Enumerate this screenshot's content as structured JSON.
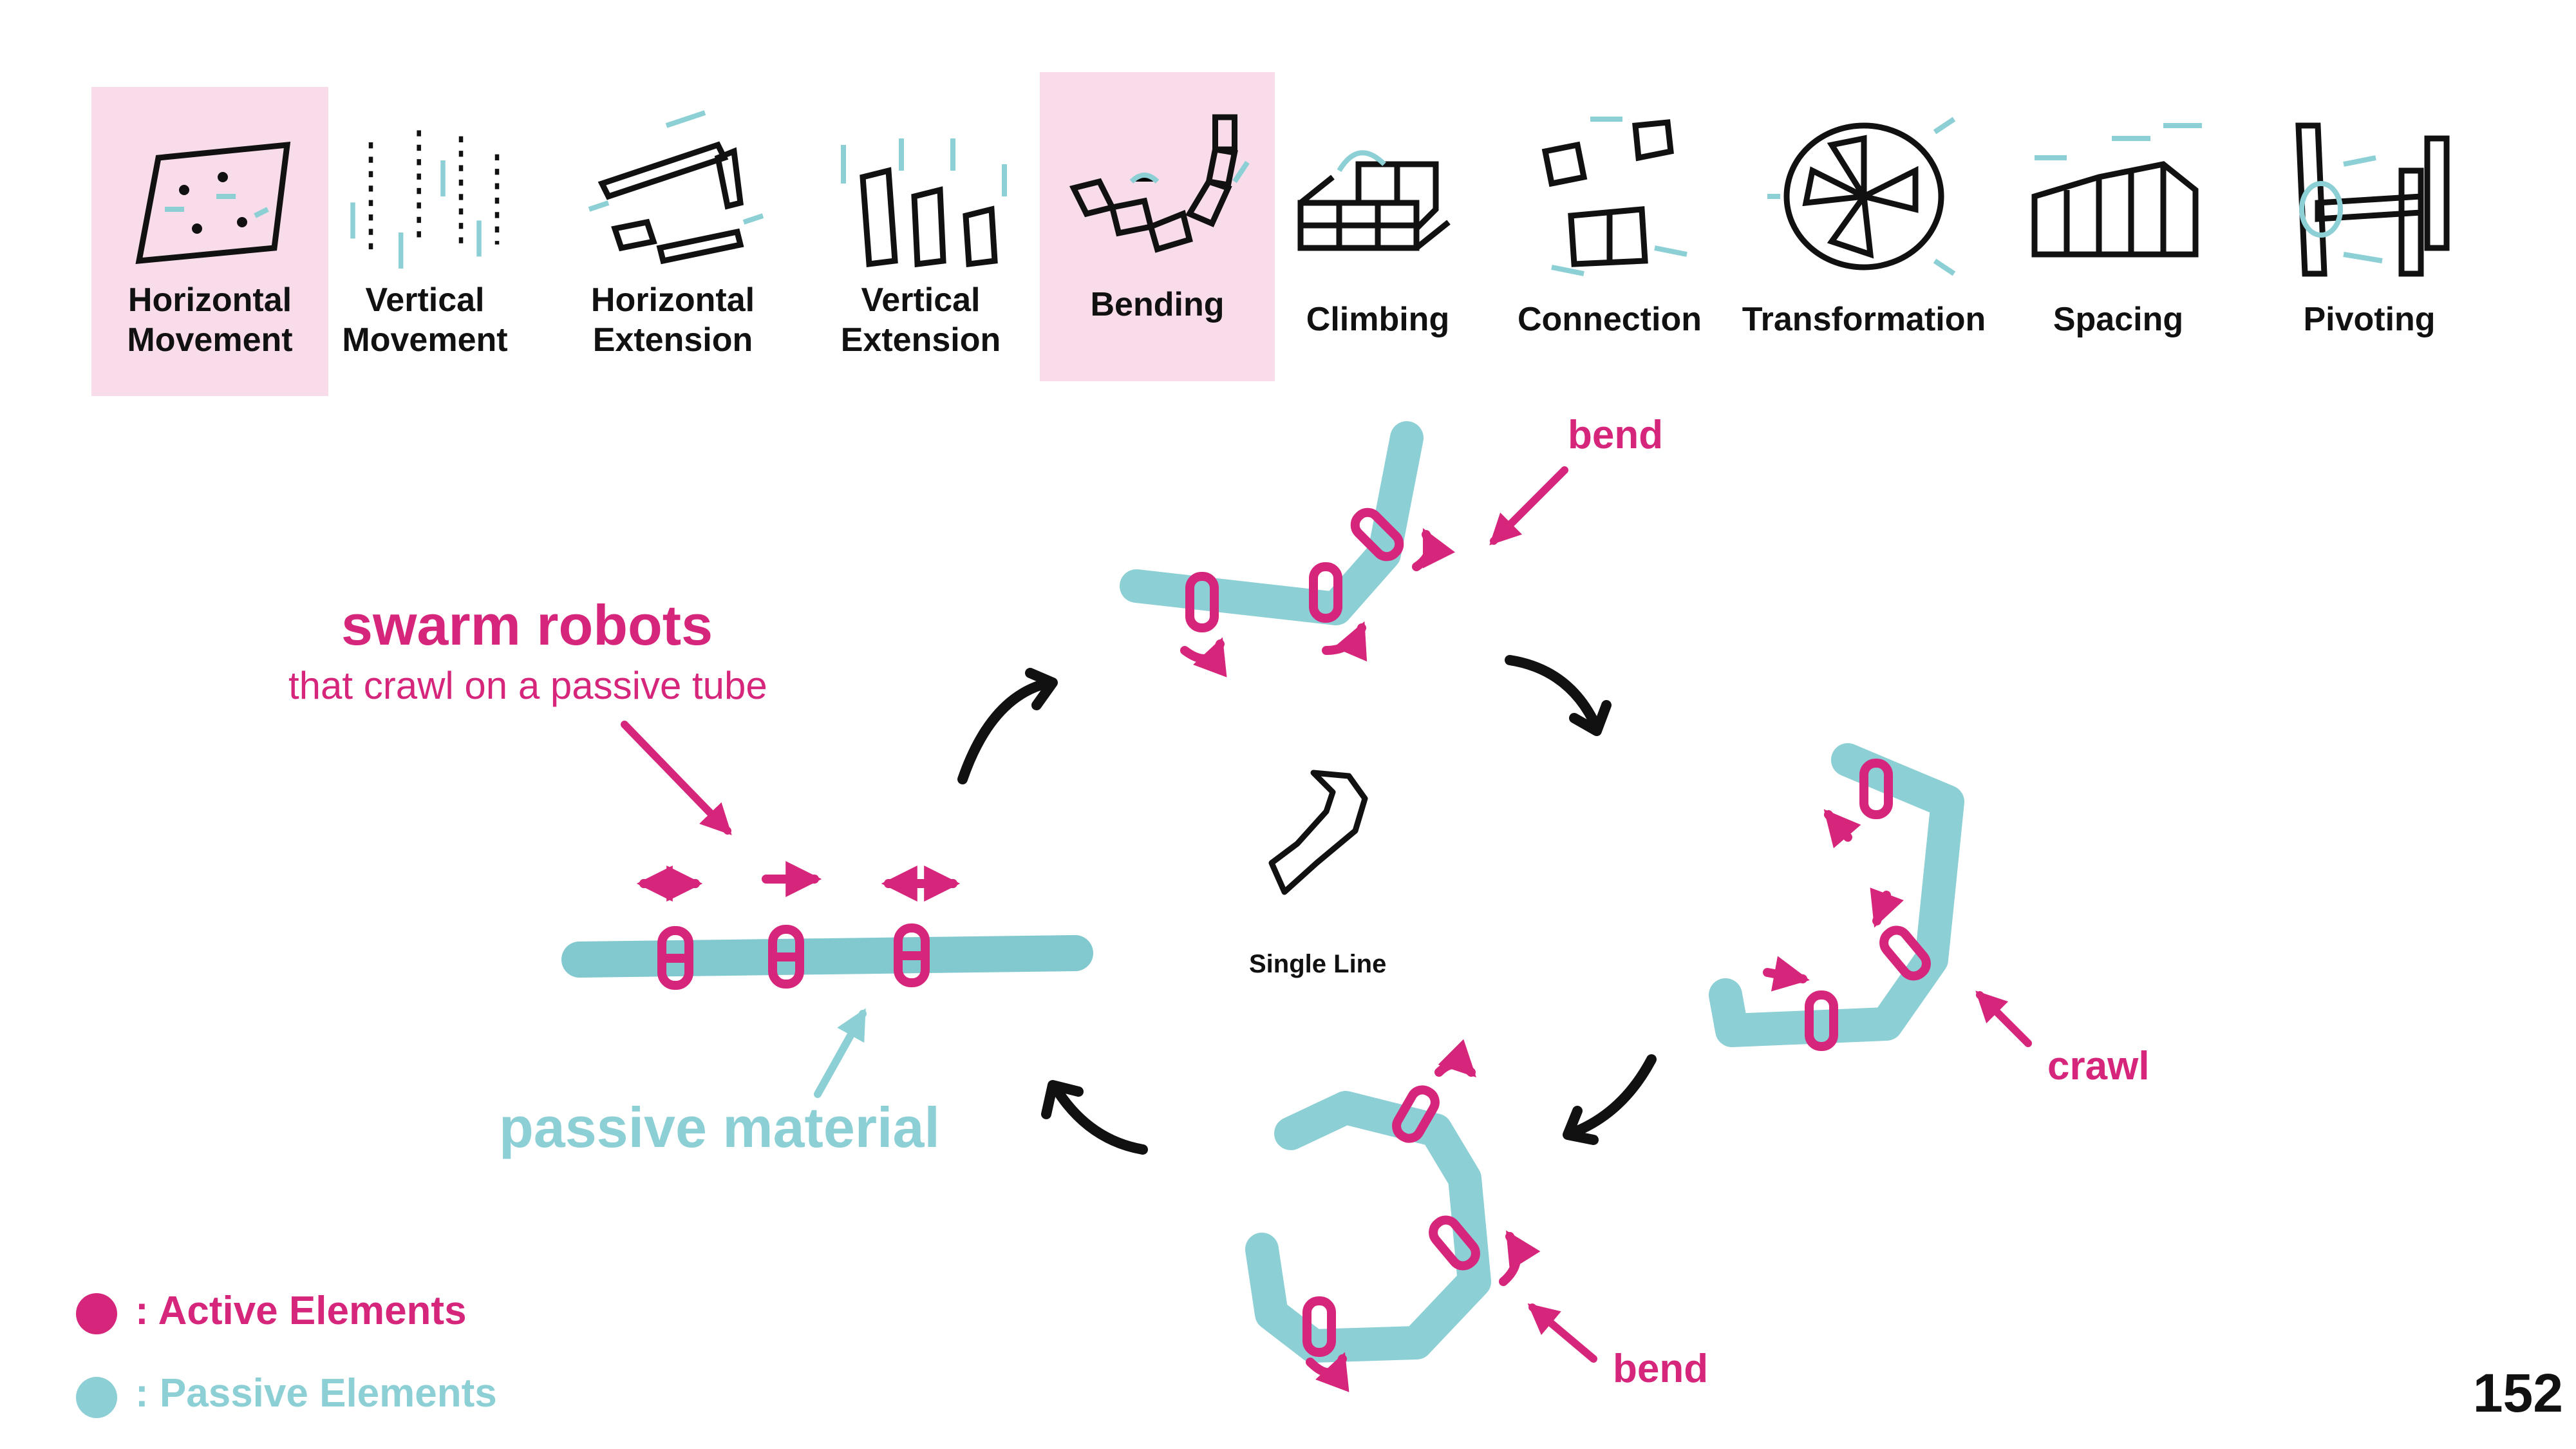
{
  "categories": [
    {
      "label": "Horizontal\nMovement",
      "highlighted": true,
      "icon": "horizontal-movement-icon"
    },
    {
      "label": "Vertical\nMovement",
      "highlighted": false,
      "icon": "vertical-movement-icon"
    },
    {
      "label": "Horizontal\nExtension",
      "highlighted": false,
      "icon": "horizontal-extension-icon"
    },
    {
      "label": "Vertical\nExtension",
      "highlighted": false,
      "icon": "vertical-extension-icon"
    },
    {
      "label": "Bending",
      "highlighted": true,
      "icon": "bending-icon"
    },
    {
      "label": "Climbing",
      "highlighted": false,
      "icon": "climbing-icon"
    },
    {
      "label": "Connection",
      "highlighted": false,
      "icon": "connection-icon"
    },
    {
      "label": "Transformation",
      "highlighted": false,
      "icon": "transformation-icon"
    },
    {
      "label": "Spacing",
      "highlighted": false,
      "icon": "spacing-icon"
    },
    {
      "label": "Pivoting",
      "highlighted": false,
      "icon": "pivoting-icon"
    }
  ],
  "diagram": {
    "title": "swarm robots",
    "subtitle": "that crawl on a passive tube",
    "passive_label": "passive material",
    "bend_top_label": "bend",
    "crawl_label": "crawl",
    "bend_bottom_label": "bend",
    "center_label": "Single Line"
  },
  "legend": {
    "active": ": Active Elements",
    "passive": ": Passive Elements"
  },
  "page_number": "152",
  "colors": {
    "active": "#d6267c",
    "passive": "#8ccfd4",
    "highlight": "#f9dcea",
    "ink": "#111111"
  }
}
